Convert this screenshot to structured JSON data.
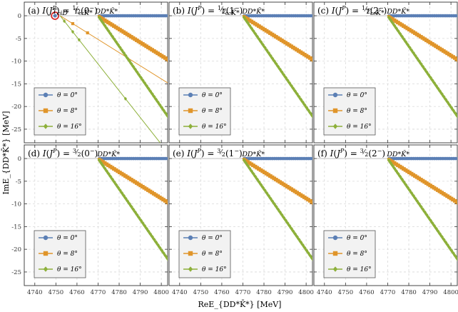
{
  "figure": {
    "ylabel": "ImE_{DD*K̄*} [MeV]",
    "xlabel": "ReE_{DD*K̄*} [MeV]"
  },
  "legend": [
    {
      "label": "θ = 0°",
      "marker": "circle",
      "color": "#5b7fb5"
    },
    {
      "label": "θ = 8°",
      "marker": "square",
      "color": "#e0952a"
    },
    {
      "label": "θ = 16°",
      "marker": "diamond",
      "color": "#8db03a"
    }
  ],
  "colors": {
    "theta0": "#5b7fb5",
    "theta8": "#e0952a",
    "theta16": "#8db03a",
    "resonance": "#d62020"
  },
  "chart_data": [
    {
      "type": "scatter",
      "panel": "a",
      "title": "(a) I(J^P) = 1/2(0^-)",
      "xlim": [
        4735,
        4803
      ],
      "ylim": [
        -28,
        3
      ],
      "xticks": [
        4740,
        4750,
        4760,
        4770,
        4780,
        4790,
        4800
      ],
      "yticks": [
        0,
        -5,
        -10,
        -15,
        -20,
        -25
      ],
      "thresholds": [
        {
          "label": "T_{cs̄}D",
          "x": 4752
        },
        {
          "label": "T_{cc}K̄*",
          "x": 4763
        },
        {
          "label": "DD*K̄*",
          "x": 4774
        }
      ],
      "resonance": {
        "x": 4749.6,
        "y": 0
      },
      "series": [
        {
          "name": "θ = 0°",
          "branch_start": 4770,
          "slope": 0
        },
        {
          "name": "θ = 8°",
          "branch_start": 4770,
          "slope": -0.29,
          "extra_cut": {
            "start": 4752,
            "slope": -0.29
          }
        },
        {
          "name": "θ = 16°",
          "branch_start": 4770,
          "slope": -0.67,
          "extra_cut": {
            "start": 4752,
            "slope": -0.59
          }
        }
      ]
    },
    {
      "type": "scatter",
      "panel": "b",
      "title": "(b) I(J^P) = 1/2(1^-)",
      "xlim": [
        4735,
        4803
      ],
      "ylim": [
        -28,
        3
      ],
      "xticks": [
        4740,
        4750,
        4760,
        4770,
        4780,
        4790,
        4800
      ],
      "yticks": [
        0,
        -5,
        -10,
        -15,
        -20,
        -25
      ],
      "thresholds": [
        {
          "label": "T_{cc}K̄*",
          "x": 4764
        },
        {
          "label": "DD*K̄*",
          "x": 4775
        }
      ],
      "series": [
        {
          "name": "θ = 0°",
          "branch_start": 4770,
          "slope": 0
        },
        {
          "name": "θ = 8°",
          "branch_start": 4770,
          "slope": -0.29
        },
        {
          "name": "θ = 16°",
          "branch_start": 4770,
          "slope": -0.67
        }
      ]
    },
    {
      "type": "scatter",
      "panel": "c",
      "title": "(c) I(J^P) = 1/2(2^-)",
      "xlim": [
        4735,
        4803
      ],
      "ylim": [
        -28,
        3
      ],
      "xticks": [
        4740,
        4750,
        4760,
        4770,
        4780,
        4790,
        4800
      ],
      "yticks": [
        0,
        -5,
        -10,
        -15,
        -20,
        -25
      ],
      "thresholds": [
        {
          "label": "T_{cc}K̄*",
          "x": 4764
        },
        {
          "label": "DD*K̄*",
          "x": 4775
        }
      ],
      "series": [
        {
          "name": "θ = 0°",
          "branch_start": 4770,
          "slope": 0
        },
        {
          "name": "θ = 8°",
          "branch_start": 4770,
          "slope": -0.29
        },
        {
          "name": "θ = 16°",
          "branch_start": 4770,
          "slope": -0.67
        }
      ]
    },
    {
      "type": "scatter",
      "panel": "d",
      "title": "(d) I(J^P) = 3/2(0^-)",
      "xlim": [
        4735,
        4803
      ],
      "ylim": [
        -28,
        3
      ],
      "xticks": [
        4740,
        4750,
        4760,
        4770,
        4780,
        4790,
        4800
      ],
      "yticks": [
        0,
        -5,
        -10,
        -15,
        -20,
        -25
      ],
      "thresholds": [
        {
          "label": "DD*K̄*",
          "x": 4775
        }
      ],
      "series": [
        {
          "name": "θ = 0°",
          "branch_start": 4770,
          "slope": 0
        },
        {
          "name": "θ = 8°",
          "branch_start": 4770,
          "slope": -0.29
        },
        {
          "name": "θ = 16°",
          "branch_start": 4770,
          "slope": -0.67
        }
      ]
    },
    {
      "type": "scatter",
      "panel": "e",
      "title": "(e) I(J^P) = 3/2(1^-)",
      "xlim": [
        4735,
        4803
      ],
      "ylim": [
        -28,
        3
      ],
      "xticks": [
        4740,
        4750,
        4760,
        4770,
        4780,
        4790,
        4800
      ],
      "yticks": [
        0,
        -5,
        -10,
        -15,
        -20,
        -25
      ],
      "thresholds": [
        {
          "label": "DD*K̄*",
          "x": 4775
        }
      ],
      "series": [
        {
          "name": "θ = 0°",
          "branch_start": 4770,
          "slope": 0
        },
        {
          "name": "θ = 8°",
          "branch_start": 4770,
          "slope": -0.29
        },
        {
          "name": "θ = 16°",
          "branch_start": 4770,
          "slope": -0.67
        }
      ]
    },
    {
      "type": "scatter",
      "panel": "f",
      "title": "(f) I(J^P) = 3/2(2^-)",
      "xlim": [
        4735,
        4803
      ],
      "ylim": [
        -28,
        3
      ],
      "xticks": [
        4740,
        4750,
        4760,
        4770,
        4780,
        4790,
        4800
      ],
      "yticks": [
        0,
        -5,
        -10,
        -15,
        -20,
        -25
      ],
      "thresholds": [
        {
          "label": "DD*K̄*",
          "x": 4775
        }
      ],
      "series": [
        {
          "name": "θ = 0°",
          "branch_start": 4770,
          "slope": 0
        },
        {
          "name": "θ = 8°",
          "branch_start": 4770,
          "slope": -0.29
        },
        {
          "name": "θ = 16°",
          "branch_start": 4770,
          "slope": -0.67
        }
      ]
    }
  ]
}
